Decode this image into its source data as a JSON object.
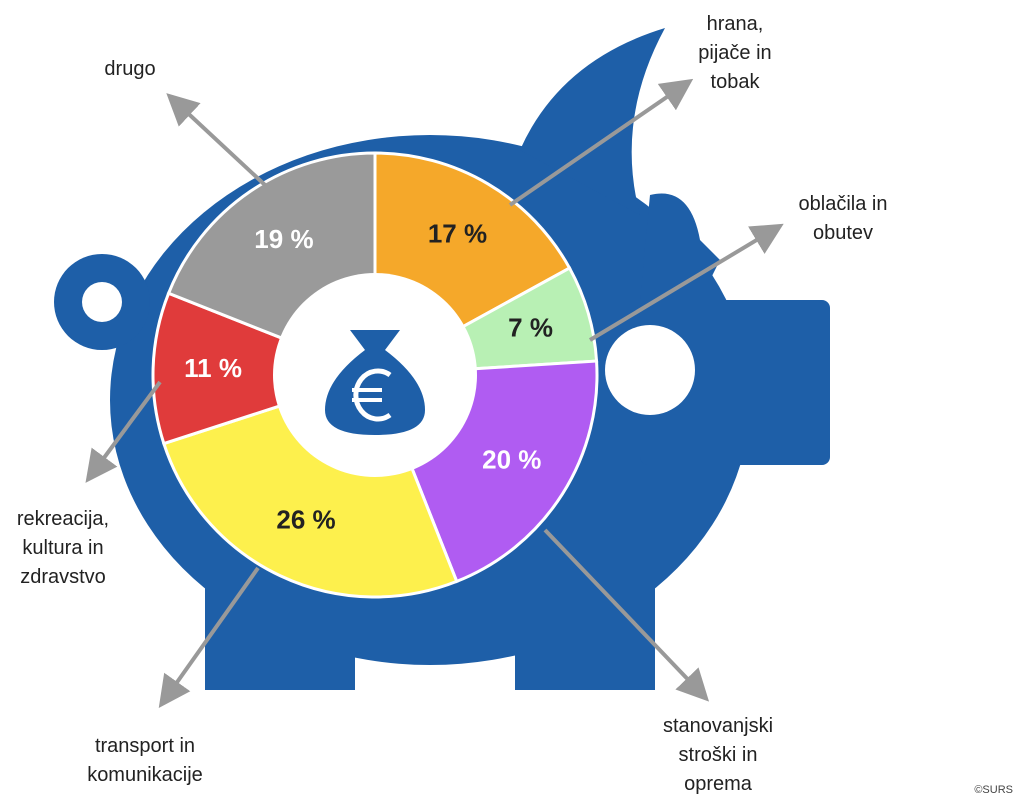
{
  "chart_data": {
    "type": "donut",
    "categories": [
      "hrana, pijače in tobak",
      "oblačila in obutev",
      "stanovanjski stroški in oprema",
      "transport in komunikacije",
      "rekreacija, kultura in zdravstvo",
      "drugo"
    ],
    "values": [
      17,
      7,
      20,
      26,
      11,
      19
    ],
    "value_labels": [
      "17 %",
      "7 %",
      "20 %",
      "26 %",
      "11 %",
      "19 %"
    ],
    "colors": [
      "#f5a82a",
      "#b8f0b4",
      "#b05cf2",
      "#fdf04d",
      "#e03b3b",
      "#9a9a9a"
    ],
    "source": "©SURS"
  }
}
